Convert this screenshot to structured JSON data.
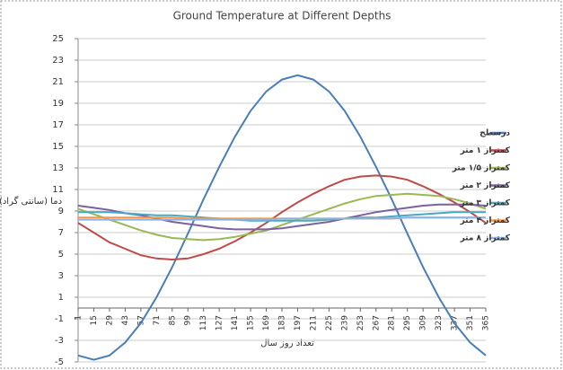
{
  "chart_data": {
    "type": "line",
    "title": "Ground Temperature at Different Depths",
    "x_label": "تعداد روز سال",
    "y_label": "دما (سانتی گراد)",
    "x": [
      1,
      15,
      29,
      43,
      57,
      71,
      85,
      99,
      113,
      127,
      141,
      155,
      169,
      183,
      197,
      211,
      225,
      239,
      253,
      267,
      281,
      295,
      309,
      323,
      337,
      351,
      365
    ],
    "xlim": [
      1,
      365
    ],
    "ylim": [
      -5,
      25
    ],
    "yticks": [
      -5,
      -3,
      -1,
      1,
      3,
      5,
      7,
      9,
      11,
      13,
      15,
      17,
      19,
      21,
      23,
      25
    ],
    "grid": true,
    "legend": "right",
    "series": [
      {
        "name": "درسطح",
        "color": "#4a7ebb",
        "values": [
          -4.4,
          -4.8,
          -4.4,
          -3.2,
          -1.4,
          1.0,
          3.8,
          6.9,
          10.1,
          13.1,
          15.9,
          18.3,
          20.1,
          21.2,
          21.6,
          21.2,
          20.1,
          18.3,
          15.9,
          13.1,
          10.1,
          6.9,
          3.8,
          1.0,
          -1.4,
          -3.2,
          -4.4
        ]
      },
      {
        "name": "کمتراز ۱ متر",
        "color": "#be4b48",
        "values": [
          7.9,
          7.0,
          6.1,
          5.5,
          4.9,
          4.6,
          4.5,
          4.6,
          5.0,
          5.5,
          6.2,
          7.0,
          7.9,
          8.9,
          9.8,
          10.6,
          11.3,
          11.9,
          12.2,
          12.3,
          12.2,
          11.9,
          11.3,
          10.6,
          9.8,
          8.9,
          7.9
        ]
      },
      {
        "name": "کمتراز ۱/۵ متر",
        "color": "#98b954",
        "values": [
          9.2,
          8.7,
          8.2,
          7.7,
          7.2,
          6.8,
          6.5,
          6.4,
          6.3,
          6.4,
          6.6,
          6.9,
          7.2,
          7.7,
          8.2,
          8.7,
          9.2,
          9.7,
          10.1,
          10.4,
          10.5,
          10.6,
          10.5,
          10.4,
          10.1,
          9.7,
          9.2
        ]
      },
      {
        "name": "کمتراز ۲ متر",
        "color": "#7d60a0",
        "values": [
          9.5,
          9.3,
          9.1,
          8.8,
          8.6,
          8.3,
          8.0,
          7.8,
          7.6,
          7.4,
          7.3,
          7.3,
          7.3,
          7.4,
          7.6,
          7.8,
          8.0,
          8.3,
          8.6,
          8.9,
          9.1,
          9.3,
          9.5,
          9.6,
          9.6,
          9.6,
          9.5
        ]
      },
      {
        "name": "کمتراز ۳ متر",
        "color": "#46aac5",
        "values": [
          8.9,
          8.9,
          8.9,
          8.8,
          8.7,
          8.6,
          8.6,
          8.5,
          8.4,
          8.3,
          8.2,
          8.1,
          8.1,
          8.1,
          8.1,
          8.1,
          8.2,
          8.3,
          8.4,
          8.4,
          8.5,
          8.6,
          8.7,
          8.8,
          8.9,
          8.9,
          8.9
        ]
      },
      {
        "name": "کمتراز ۴ متر",
        "color": "#f79646",
        "values": [
          8.4,
          8.4,
          8.4,
          8.4,
          8.4,
          8.4,
          8.4,
          8.3,
          8.3,
          8.3,
          8.3,
          8.3,
          8.3,
          8.3,
          8.3,
          8.3,
          8.3,
          8.3,
          8.3,
          8.3,
          8.3,
          8.4,
          8.4,
          8.4,
          8.4,
          8.4,
          8.4
        ]
      },
      {
        "name": "کمتراز ۸ متر",
        "color": "#8db3e2",
        "values": [
          8.2,
          8.2,
          8.2,
          8.2,
          8.2,
          8.2,
          8.2,
          8.2,
          8.2,
          8.2,
          8.2,
          8.2,
          8.2,
          8.3,
          8.3,
          8.3,
          8.3,
          8.3,
          8.3,
          8.3,
          8.3,
          8.4,
          8.4,
          8.4,
          8.4,
          8.4,
          8.4
        ]
      }
    ]
  }
}
